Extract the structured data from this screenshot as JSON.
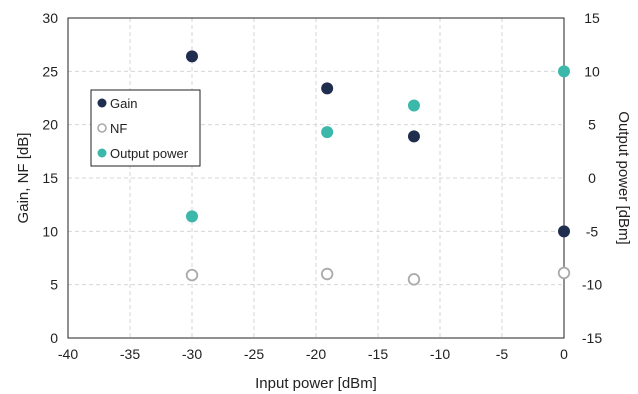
{
  "chart_data": {
    "type": "scatter",
    "title": "",
    "xlabel": "Input power [dBm]",
    "ylabel": "Gain, NF [dB]",
    "y2label": "Output power [dBm]",
    "xlim": [
      -40,
      0
    ],
    "ylim": [
      0,
      30
    ],
    "y2lim": [
      -15,
      15
    ],
    "xticks": [
      "-40",
      "-35",
      "-30",
      "-25",
      "-20",
      "-15",
      "-10",
      "-5",
      "0"
    ],
    "yticks": [
      "0",
      "5",
      "10",
      "15",
      "20",
      "25",
      "30"
    ],
    "y2ticks": [
      "-15",
      "-10",
      "-5",
      "0",
      "5",
      "10",
      "15"
    ],
    "grid": true,
    "legend_position": "left",
    "series": [
      {
        "name": "Gain",
        "axis": "left",
        "marker": "filled-circle",
        "color": "#1f2d4e",
        "x": [
          -30,
          -19.1,
          -12.1,
          0
        ],
        "y": [
          26.4,
          23.4,
          18.9,
          10.0
        ]
      },
      {
        "name": "NF",
        "axis": "left",
        "marker": "hollow-circle",
        "color": "#aaaaaa",
        "x": [
          -30,
          -19.1,
          -12.1,
          0
        ],
        "y": [
          5.9,
          6.0,
          5.5,
          6.1
        ]
      },
      {
        "name": "Output power",
        "axis": "right",
        "marker": "filled-circle",
        "color": "#3bb8a9",
        "x": [
          -30,
          -19.1,
          -12.1,
          0
        ],
        "y": [
          -3.6,
          4.3,
          6.8,
          10.0
        ]
      }
    ]
  }
}
